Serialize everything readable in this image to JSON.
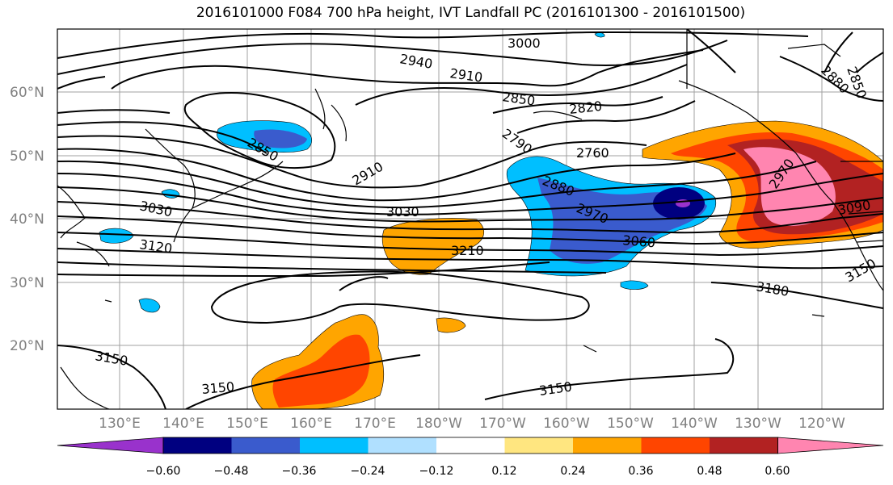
{
  "title": "2016101000 F084 700 hPa height, IVT Landfall PC (2016101300 - 2016101500)",
  "lat_labels": [
    "60°N",
    "50°N",
    "40°N",
    "30°N",
    "20°N"
  ],
  "lon_labels": [
    "130°E",
    "140°E",
    "150°E",
    "160°E",
    "170°E",
    "180°W",
    "170°W",
    "160°W",
    "150°W",
    "140°W",
    "130°W",
    "120°W"
  ],
  "contour_labels": [
    "3000",
    "2940",
    "2910",
    "2850",
    "2820",
    "2790",
    "2760",
    "2880",
    "2970",
    "3060",
    "3090",
    "2970",
    "2850",
    "3030",
    "3120",
    "3210",
    "3180",
    "3150",
    "3150",
    "3150",
    "2910",
    "2850",
    "2880",
    "3150",
    "3030"
  ],
  "colorbar": {
    "ticks": [
      "−0.60",
      "−0.48",
      "−0.36",
      "−0.24",
      "−0.12",
      "0.12",
      "0.24",
      "0.36",
      "0.48",
      "0.60"
    ],
    "colors": [
      "#9932cc",
      "#000080",
      "#3a5bcd",
      "#00bfff",
      "#b0e0ff",
      "#ffffff",
      "#ffe680",
      "#ffa500",
      "#ff4500",
      "#b22222",
      "#ff85b0"
    ]
  }
}
